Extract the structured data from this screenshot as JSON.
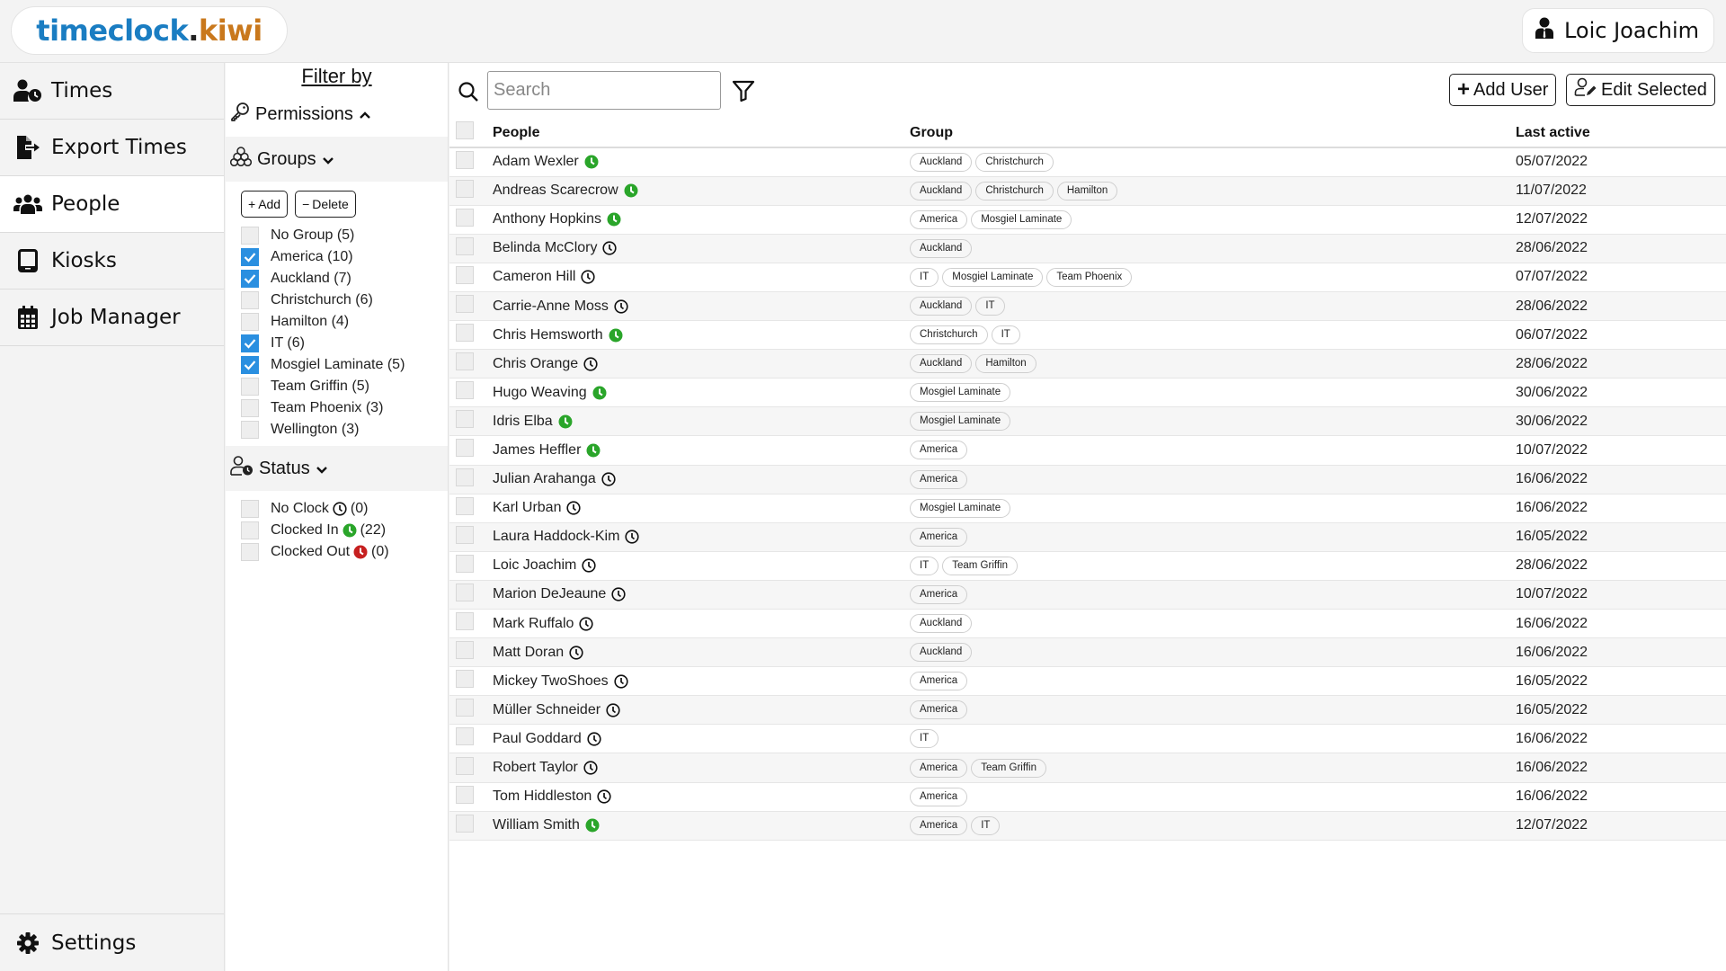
{
  "header": {
    "logo": {
      "part1": "timeclock",
      "part2": ".",
      "part3": "kiwi"
    },
    "user_name": "Loic Joachim",
    "user_icon": "user-tie-icon"
  },
  "sidebar": {
    "items": [
      {
        "label": "Times",
        "icon": "user-clock-icon",
        "active": false
      },
      {
        "label": "Export Times",
        "icon": "file-export-icon",
        "active": false
      },
      {
        "label": "People",
        "icon": "users-icon",
        "active": true
      },
      {
        "label": "Kiosks",
        "icon": "tablet-icon",
        "active": false
      },
      {
        "label": "Job Manager",
        "icon": "calendar-icon",
        "active": false
      }
    ],
    "settings": {
      "label": "Settings",
      "icon": "gear-icon"
    }
  },
  "filter": {
    "title": "Filter by",
    "permissions": {
      "label": "Permissions",
      "icon": "key-icon",
      "expanded": false
    },
    "groups": {
      "label": "Groups",
      "icon": "groups-icon",
      "add_label": "Add",
      "delete_label": "Delete",
      "items": [
        {
          "label": "No Group (5)",
          "checked": false
        },
        {
          "label": "America (10)",
          "checked": true
        },
        {
          "label": "Auckland (7)",
          "checked": true
        },
        {
          "label": "Christchurch (6)",
          "checked": false
        },
        {
          "label": "Hamilton (4)",
          "checked": false
        },
        {
          "label": "IT (6)",
          "checked": true
        },
        {
          "label": "Mosgiel Laminate (5)",
          "checked": true
        },
        {
          "label": "Team Griffin (5)",
          "checked": false
        },
        {
          "label": "Team Phoenix (3)",
          "checked": false
        },
        {
          "label": "Wellington (3)",
          "checked": false
        }
      ]
    },
    "status": {
      "label": "Status",
      "icon": "user-clock-outline-icon",
      "items": [
        {
          "label": "No Clock",
          "count": "(0)",
          "status": "none",
          "checked": false
        },
        {
          "label": "Clocked In",
          "count": "(22)",
          "status": "in",
          "checked": false
        },
        {
          "label": "Clocked Out",
          "count": "(0)",
          "status": "out",
          "checked": false
        }
      ]
    }
  },
  "toolbar": {
    "search_placeholder": "Search",
    "search_value": "",
    "add_user_label": "Add User",
    "edit_selected_label": "Edit Selected"
  },
  "colors": {
    "clocked_in": "#2aa52a",
    "clocked_out": "#c62020",
    "checkbox_on": "#2a8fe0",
    "logo_blue": "#1a7dc2",
    "logo_orange": "#c9781c"
  },
  "table": {
    "headers": {
      "people": "People",
      "group": "Group",
      "last_active": "Last active"
    },
    "rows": [
      {
        "name": "Adam Wexler",
        "status": "in",
        "groups": [
          "Auckland",
          "Christchurch"
        ],
        "last_active": "05/07/2022"
      },
      {
        "name": "Andreas Scarecrow",
        "status": "in",
        "groups": [
          "Auckland",
          "Christchurch",
          "Hamilton"
        ],
        "last_active": "11/07/2022"
      },
      {
        "name": "Anthony Hopkins",
        "status": "in",
        "groups": [
          "America",
          "Mosgiel Laminate"
        ],
        "last_active": "12/07/2022"
      },
      {
        "name": "Belinda McClory",
        "status": "none",
        "groups": [
          "Auckland"
        ],
        "last_active": "28/06/2022"
      },
      {
        "name": "Cameron Hill",
        "status": "none",
        "groups": [
          "IT",
          "Mosgiel Laminate",
          "Team Phoenix"
        ],
        "last_active": "07/07/2022"
      },
      {
        "name": "Carrie-Anne Moss",
        "status": "none",
        "groups": [
          "Auckland",
          "IT"
        ],
        "last_active": "28/06/2022"
      },
      {
        "name": "Chris Hemsworth",
        "status": "in",
        "groups": [
          "Christchurch",
          "IT"
        ],
        "last_active": "06/07/2022"
      },
      {
        "name": "Chris Orange",
        "status": "none",
        "groups": [
          "Auckland",
          "Hamilton"
        ],
        "last_active": "28/06/2022"
      },
      {
        "name": "Hugo Weaving",
        "status": "in",
        "groups": [
          "Mosgiel Laminate"
        ],
        "last_active": "30/06/2022"
      },
      {
        "name": "Idris Elba",
        "status": "in",
        "groups": [
          "Mosgiel Laminate"
        ],
        "last_active": "30/06/2022"
      },
      {
        "name": "James Heffler",
        "status": "in",
        "groups": [
          "America"
        ],
        "last_active": "10/07/2022"
      },
      {
        "name": "Julian Arahanga",
        "status": "none",
        "groups": [
          "America"
        ],
        "last_active": "16/06/2022"
      },
      {
        "name": "Karl Urban",
        "status": "none",
        "groups": [
          "Mosgiel Laminate"
        ],
        "last_active": "16/06/2022"
      },
      {
        "name": "Laura Haddock-Kim",
        "status": "none",
        "groups": [
          "America"
        ],
        "last_active": "16/05/2022"
      },
      {
        "name": "Loic Joachim",
        "status": "none",
        "groups": [
          "IT",
          "Team Griffin"
        ],
        "last_active": "28/06/2022"
      },
      {
        "name": "Marion DeJeaune",
        "status": "none",
        "groups": [
          "America"
        ],
        "last_active": "10/07/2022"
      },
      {
        "name": "Mark Ruffalo",
        "status": "none",
        "groups": [
          "Auckland"
        ],
        "last_active": "16/06/2022"
      },
      {
        "name": "Matt Doran",
        "status": "none",
        "groups": [
          "Auckland"
        ],
        "last_active": "16/06/2022"
      },
      {
        "name": "Mickey TwoShoes",
        "status": "none",
        "groups": [
          "America"
        ],
        "last_active": "16/05/2022"
      },
      {
        "name": "Müller Schneider",
        "status": "none",
        "groups": [
          "America"
        ],
        "last_active": "16/05/2022"
      },
      {
        "name": "Paul Goddard",
        "status": "none",
        "groups": [
          "IT"
        ],
        "last_active": "16/06/2022"
      },
      {
        "name": "Robert Taylor",
        "status": "none",
        "groups": [
          "America",
          "Team Griffin"
        ],
        "last_active": "16/06/2022"
      },
      {
        "name": "Tom Hiddleston",
        "status": "none",
        "groups": [
          "America"
        ],
        "last_active": "16/06/2022"
      },
      {
        "name": "William Smith",
        "status": "in",
        "groups": [
          "America",
          "IT"
        ],
        "last_active": "12/07/2022"
      }
    ]
  }
}
